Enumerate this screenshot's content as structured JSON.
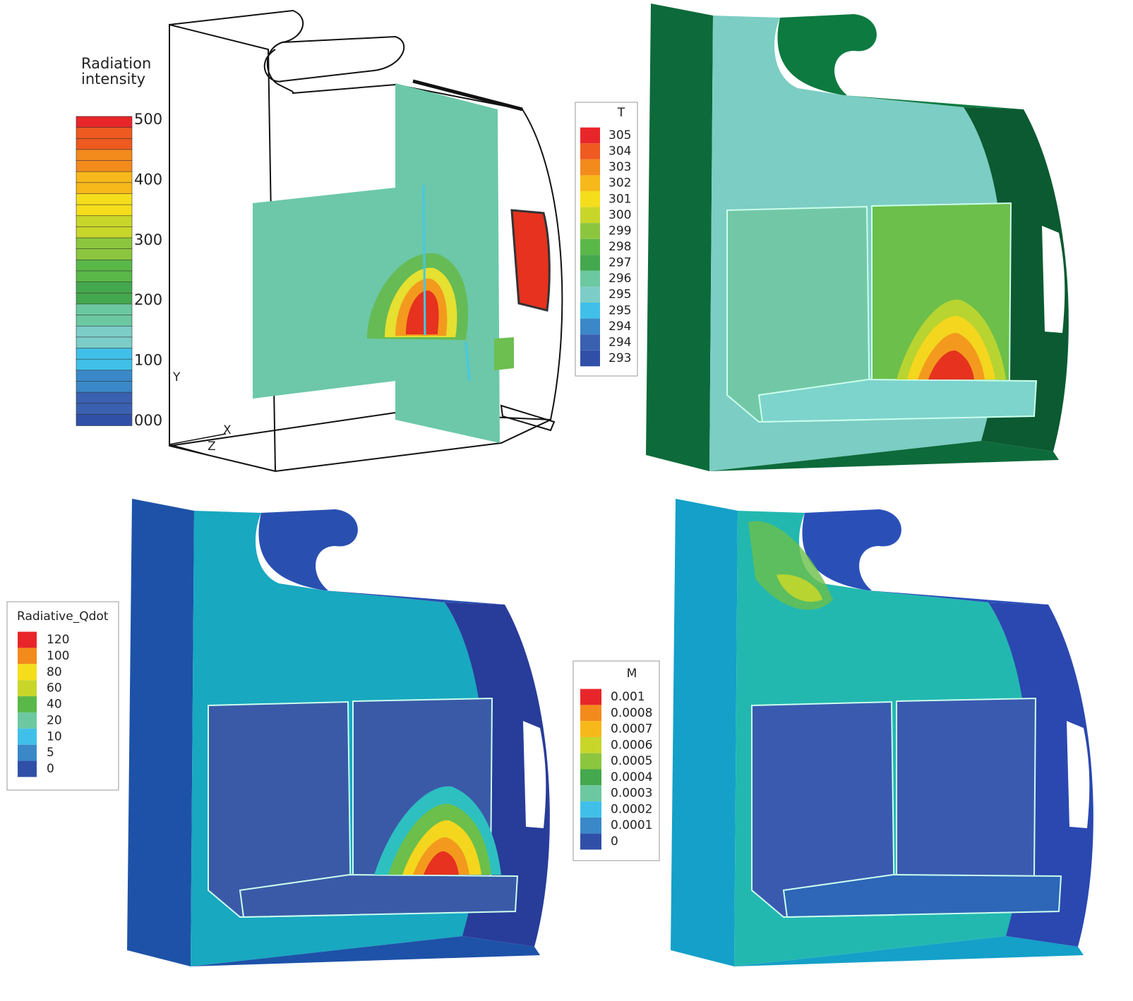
{
  "panels": [
    {
      "legend": {
        "title_lines": [
          "Radiation",
          "intensity"
        ],
        "labels": [
          "500",
          "400",
          "300",
          "200",
          "100",
          "000"
        ]
      },
      "axes": {
        "y": "Y",
        "x": "X",
        "z": "Z"
      }
    },
    {
      "legend": {
        "title": "T",
        "labels": [
          "305",
          "304",
          "303",
          "302",
          "301",
          "300",
          "299",
          "298",
          "297",
          "296",
          "295",
          "295",
          "294",
          "294",
          "293"
        ]
      }
    },
    {
      "legend": {
        "title": "Radiative_Qdot",
        "labels": [
          "120",
          "100",
          "80",
          "60",
          "40",
          "20",
          "10",
          "5",
          "0"
        ]
      }
    },
    {
      "legend": {
        "title": "M",
        "labels": [
          "0.001",
          "0.0008",
          "0.0007",
          "0.0006",
          "0.0005",
          "0.0004",
          "0.0003",
          "0.0002",
          "0.0001",
          "0"
        ]
      }
    }
  ]
}
